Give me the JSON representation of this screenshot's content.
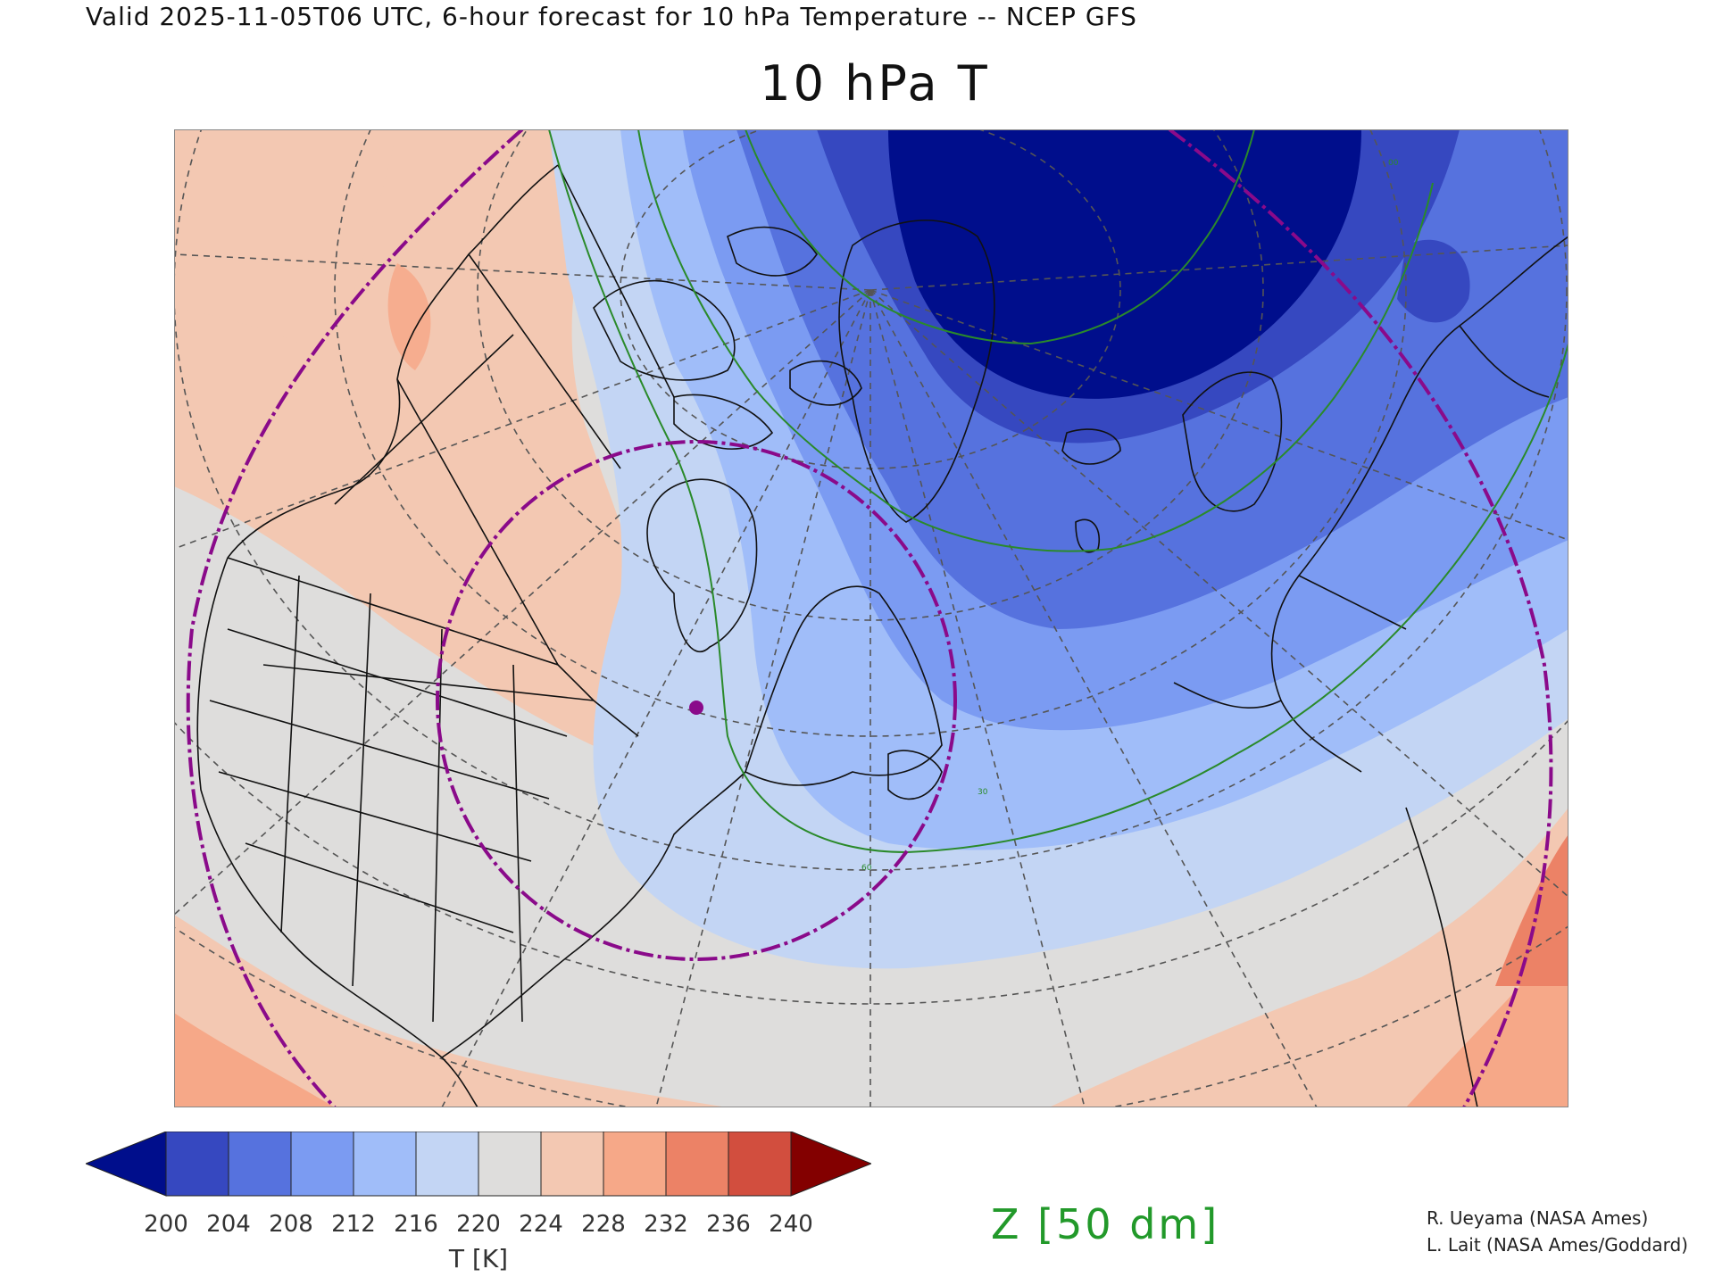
{
  "header": {
    "valid_line": "Valid 2025-11-05T06 UTC, 6-hour forecast for 10 hPa Temperature -- NCEP GFS",
    "title": "10 hPa T"
  },
  "map": {
    "variable": "10 hPa temperature",
    "overlay_contours": "geopotential height (green)",
    "contour_labels": [
      "30",
      "50",
      "60",
      "00"
    ],
    "marker_color": "#8a0a8a",
    "ring_color": "#8a0a8a",
    "contour_color": "#2a8a2a"
  },
  "colorbar": {
    "label": "T [K]",
    "ticks": [
      "200",
      "204",
      "208",
      "212",
      "216",
      "220",
      "224",
      "228",
      "232",
      "236",
      "240"
    ],
    "under_color": "#000e8c",
    "over_color": "#830000",
    "colors": [
      "#3648c0",
      "#5672de",
      "#7b9bf2",
      "#a0bdf9",
      "#c3d5f4",
      "#dedddc",
      "#f3c8b2",
      "#f6a888",
      "#ec8266",
      "#d24e3e"
    ]
  },
  "overlay_label": "Z [50 dm]",
  "credits": {
    "line1": "R. Ueyama (NASA Ames)",
    "line2": "L. Lait (NASA Ames/Goddard)"
  }
}
